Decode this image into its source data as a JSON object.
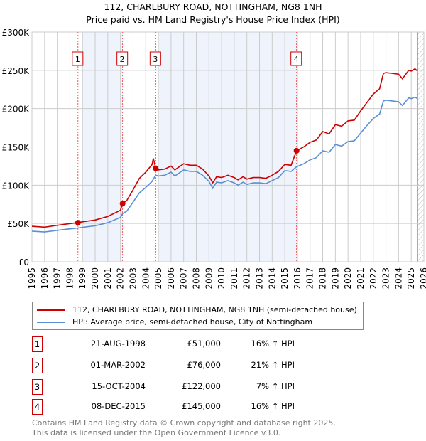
{
  "chart_data": {
    "type": "line",
    "title": "112, CHARLBURY ROAD, NOTTINGHAM, NG8 1NH",
    "subtitle": "Price paid vs. HM Land Registry's House Price Index (HPI)",
    "xlim": [
      1995,
      2026
    ],
    "ylim": [
      0,
      300000
    ],
    "yticks": [
      {
        "v": 0,
        "label": "£0"
      },
      {
        "v": 50000,
        "label": "£50K"
      },
      {
        "v": 100000,
        "label": "£100K"
      },
      {
        "v": 150000,
        "label": "£150K"
      },
      {
        "v": 200000,
        "label": "£200K"
      },
      {
        "v": 250000,
        "label": "£250K"
      },
      {
        "v": 300000,
        "label": "£300K"
      }
    ],
    "xticks": [
      "1995",
      "1996",
      "1997",
      "1998",
      "1999",
      "2000",
      "2001",
      "2002",
      "2003",
      "2004",
      "2005",
      "2006",
      "2007",
      "2008",
      "2009",
      "2010",
      "2011",
      "2012",
      "2013",
      "2014",
      "2015",
      "2016",
      "2017",
      "2018",
      "2019",
      "2020",
      "2021",
      "2022",
      "2023",
      "2024",
      "2025",
      "2026"
    ],
    "grid": true,
    "shaded_ranges": [
      [
        1999.0,
        2002.17
      ],
      [
        2005.0,
        2016.0
      ]
    ],
    "forecast_hatch_from": 2025.5,
    "x": [
      1995,
      1996,
      1997,
      1998,
      1998.6,
      1999,
      2000,
      2001,
      2002,
      2002.17,
      2002.5,
      2003,
      2003.5,
      2004,
      2004.5,
      2004.6,
      2004.79,
      2005,
      2005.5,
      2006,
      2006.3,
      2007,
      2007.5,
      2008,
      2008.5,
      2009,
      2009.3,
      2009.6,
      2010,
      2010.5,
      2011,
      2011.3,
      2011.7,
      2012,
      2012.5,
      2013,
      2013.5,
      2014,
      2014.5,
      2015,
      2015.5,
      2015.93,
      2016.5,
      2017,
      2017.5,
      2018,
      2018.5,
      2019,
      2019.5,
      2020,
      2020.5,
      2021,
      2021.5,
      2022,
      2022.5,
      2022.8,
      2023,
      2023.5,
      2024,
      2024.3,
      2024.8,
      2025,
      2025.3,
      2025.5
    ],
    "series": [
      {
        "name": "112, CHARLBURY ROAD, NOTTINGHAM, NG8 1NH (semi-detached house)",
        "color": "#cc0000",
        "values": [
          46400,
          45200,
          47600,
          49900,
          51000,
          52200,
          54500,
          59200,
          67300,
          76000,
          80000,
          94000,
          109000,
          117000,
          127000,
          135000,
          122000,
          120000,
          121000,
          125000,
          120000,
          128000,
          126000,
          126000,
          121000,
          112000,
          103000,
          111000,
          110000,
          113000,
          110000,
          107000,
          111000,
          108000,
          110000,
          110000,
          109000,
          113000,
          118000,
          127000,
          126000,
          145000,
          150000,
          156000,
          159000,
          170000,
          167000,
          179000,
          177000,
          184000,
          185000,
          197000,
          208000,
          219000,
          226000,
          246000,
          247000,
          246000,
          245000,
          239000,
          250000,
          249000,
          252000,
          249000
        ]
      },
      {
        "name": "HPI: Average price, semi-detached house, City of Nottingham",
        "color": "#5b8fd4",
        "values": [
          40000,
          39000,
          41000,
          43000,
          44000,
          45000,
          47000,
          51000,
          58000,
          63000,
          66000,
          78000,
          90000,
          97000,
          105000,
          108000,
          113000,
          112000,
          113000,
          117000,
          112000,
          120000,
          118000,
          118000,
          113000,
          105000,
          96000,
          104000,
          103000,
          106000,
          103000,
          100000,
          104000,
          101000,
          103000,
          103000,
          102000,
          106000,
          110000,
          119000,
          118000,
          124000,
          128000,
          133000,
          136000,
          145000,
          143000,
          153000,
          151000,
          157000,
          158000,
          168000,
          178000,
          187000,
          193000,
          210000,
          211000,
          210000,
          209000,
          204000,
          214000,
          213000,
          215000,
          213000
        ]
      }
    ],
    "sales": [
      {
        "n": "1",
        "year": 1998.64,
        "value": 51000,
        "date": "21-AUG-1998",
        "price": "£51,000",
        "hpi": "16% ↑ HPI"
      },
      {
        "n": "2",
        "year": 2002.17,
        "value": 76000,
        "date": "01-MAR-2002",
        "price": "£76,000",
        "hpi": "21% ↑ HPI"
      },
      {
        "n": "3",
        "year": 2004.79,
        "value": 122000,
        "date": "15-OCT-2004",
        "price": "£122,000",
        "hpi": "7% ↑ HPI"
      },
      {
        "n": "4",
        "year": 2015.93,
        "value": 145000,
        "date": "08-DEC-2015",
        "price": "£145,000",
        "hpi": "16% ↑ HPI"
      }
    ]
  },
  "footer": {
    "line1": "Contains HM Land Registry data © Crown copyright and database right 2025.",
    "line2": "This data is licensed under the Open Government Licence v3.0."
  }
}
